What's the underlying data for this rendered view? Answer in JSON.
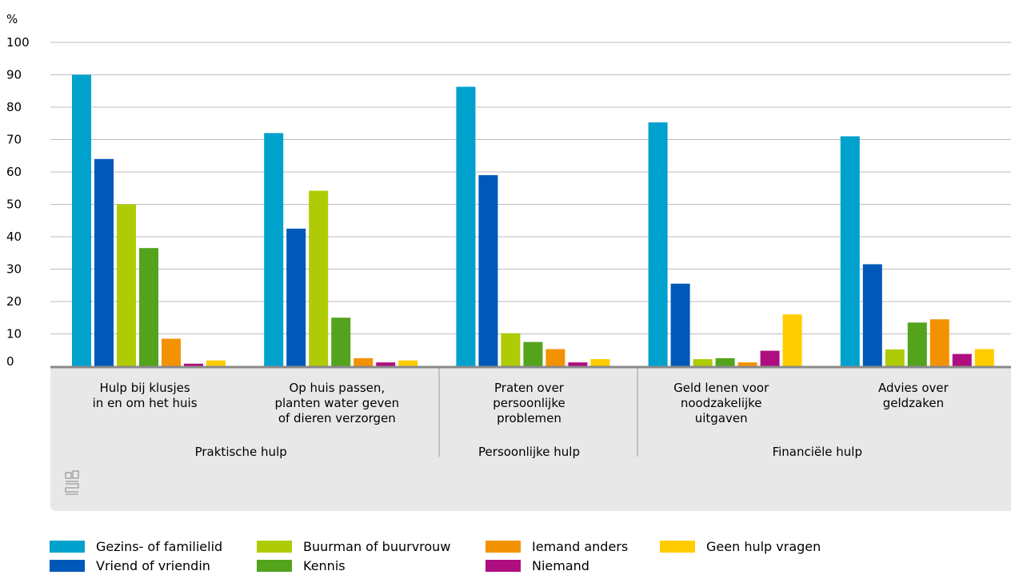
{
  "chart_data": {
    "type": "bar",
    "ylabel": "%",
    "ylim": [
      0,
      100
    ],
    "yticks": [
      0,
      10,
      20,
      30,
      40,
      50,
      60,
      70,
      80,
      90,
      100
    ],
    "categories": [
      [
        "Hulp bij klusjes",
        "in en om het huis"
      ],
      [
        "Op huis passen,",
        "planten water geven",
        "of dieren verzorgen"
      ],
      [
        "Praten over",
        "persoonlijke",
        "problemen"
      ],
      [
        "Geld lenen voor",
        "noodzakelijke",
        "uitgaven"
      ],
      [
        "Advies over",
        "geldzaken"
      ]
    ],
    "groups": [
      {
        "label": "Praktische hulp",
        "categories": [
          0,
          1
        ]
      },
      {
        "label": "Persoonlijke hulp",
        "categories": [
          2
        ]
      },
      {
        "label": "Financiële hulp",
        "categories": [
          3,
          4
        ]
      }
    ],
    "series": [
      {
        "name": "Gezins- of familielid",
        "color": "#00a1cd",
        "values": [
          90,
          72,
          86.3,
          75.3,
          71
        ]
      },
      {
        "name": "Vriend of vriendin",
        "color": "#0058b8",
        "values": [
          64,
          42.5,
          59,
          25.5,
          31.5
        ]
      },
      {
        "name": "Buurman of buurvrouw",
        "color": "#afcb05",
        "values": [
          50,
          54.2,
          10.2,
          2.2,
          5.2
        ]
      },
      {
        "name": "Kennis",
        "color": "#53a31d",
        "values": [
          36.5,
          15,
          7.5,
          2.5,
          13.5
        ]
      },
      {
        "name": "Iemand anders",
        "color": "#f39200",
        "values": [
          8.5,
          2.5,
          5.3,
          1.2,
          14.5
        ]
      },
      {
        "name": "Niemand",
        "color": "#af0e80",
        "values": [
          0.8,
          1.2,
          1.2,
          4.8,
          3.8
        ]
      },
      {
        "name": "Geen hulp vragen",
        "color": "#ffcc00",
        "values": [
          1.8,
          1.8,
          2.2,
          16,
          5.3
        ]
      }
    ],
    "legend_position": "bottom",
    "grid": true
  },
  "colors": {
    "grid": "#bdbdbd",
    "axis": "#8a8a8a",
    "panel": "#e8e8e8",
    "separator": "#9a9a9a",
    "logo": "#9a9a9a"
  },
  "logo": {
    "text": "cbs"
  }
}
